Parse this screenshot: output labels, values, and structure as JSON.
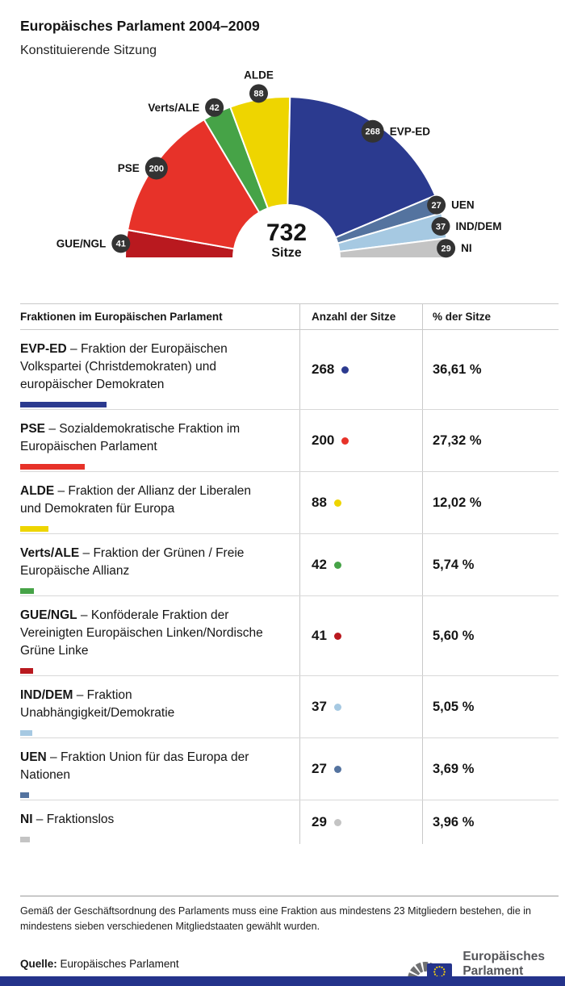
{
  "header": {
    "title": "Europäisches Parlament 2004–2009",
    "subtitle": "Konstituierende Sitzung"
  },
  "chart_data": {
    "type": "pie",
    "subtype": "half-donut-hemicycle",
    "title": "Europäisches Parlament 2004–2009 – Konstituierende Sitzung",
    "total_seats": 732,
    "center_value": "732",
    "center_label": "Sitze",
    "segments": [
      {
        "id": "GUE/NGL",
        "seats": 41,
        "color": "#b9191f"
      },
      {
        "id": "PSE",
        "seats": 200,
        "color": "#e73229"
      },
      {
        "id": "Verts/ALE",
        "seats": 42,
        "color": "#46a347"
      },
      {
        "id": "ALDE",
        "seats": 88,
        "color": "#eed500"
      },
      {
        "id": "EVP-ED",
        "seats": 268,
        "color": "#2b3a8f"
      },
      {
        "id": "UEN",
        "seats": 27,
        "color": "#54739f"
      },
      {
        "id": "IND/DEM",
        "seats": 37,
        "color": "#a6c9e2"
      },
      {
        "id": "NI",
        "seats": 29,
        "color": "#c4c4c4"
      }
    ]
  },
  "table": {
    "headers": [
      "Fraktionen im Europäischen Parlament",
      "Anzahl der Sitze",
      "% der Sitze"
    ],
    "rows": [
      {
        "name": "EVP-ED",
        "description": "Fraktion der Europäischen Volkspartei (Christdemokraten) und europäischer Demokraten",
        "seats": 268,
        "percent": "36,61 %",
        "color": "#2b3a8f"
      },
      {
        "name": "PSE",
        "description": "Sozialdemokratische Fraktion im Europäischen Parlament",
        "seats": 200,
        "percent": "27,32 %",
        "color": "#e73229"
      },
      {
        "name": "ALDE",
        "description": "Fraktion der Allianz der Liberalen und Demokraten für Europa",
        "seats": 88,
        "percent": "12,02 %",
        "color": "#eed500"
      },
      {
        "name": "Verts/ALE",
        "description": "Fraktion der Grünen / Freie Europäische Allianz",
        "seats": 42,
        "percent": "5,74 %",
        "color": "#46a347"
      },
      {
        "name": "GUE/NGL",
        "description": "Konföderale Fraktion der Vereinigten Europäischen Linken/Nordische Grüne Linke",
        "seats": 41,
        "percent": "5,60 %",
        "color": "#b9191f"
      },
      {
        "name": "IND/DEM",
        "description": "Fraktion Unabhängigkeit/Demokratie",
        "seats": 37,
        "percent": "5,05 %",
        "color": "#a6c9e2"
      },
      {
        "name": "UEN",
        "description": "Fraktion Union für das Europa der Nationen",
        "seats": 27,
        "percent": "3,69 %",
        "color": "#54739f"
      },
      {
        "name": "NI",
        "description": "Fraktionslos",
        "seats": 29,
        "percent": "3,96 %",
        "color": "#c4c4c4"
      }
    ]
  },
  "footnote": "Gemäß der Geschäftsordnung des Parlaments muss eine Fraktion aus mindestens 23 Mitgliedern bestehen, die in mindestens sieben verschiedenen Mitgliedstaaten gewählt wurden.",
  "source": {
    "label": "Quelle:",
    "text": "Europäisches Parlament"
  },
  "logo": {
    "line1": "Europäisches",
    "line2": "Parlament"
  },
  "colors": {
    "accent_bar": "#24338b",
    "badge": "#333333",
    "divider": "#cccccc",
    "logo_gray": "#6f7072",
    "eu_star_yellow": "#f3cf10"
  }
}
